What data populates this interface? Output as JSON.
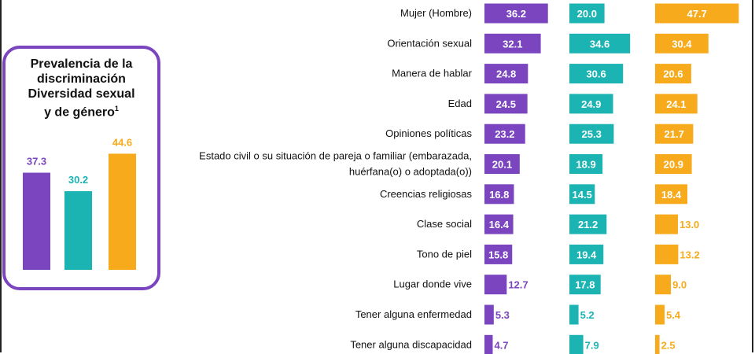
{
  "colors": {
    "purple": "#7a45bf",
    "teal": "#1cb3b3",
    "orange": "#f7ab1c"
  },
  "summary": {
    "title": "Prevalencia de la\ndiscriminación\nDiversidad sexual\ny de género",
    "footnote_marker": "1",
    "chart_data": {
      "type": "bar",
      "series": [
        {
          "value": 37.3,
          "label": "37.3",
          "color": "#7a45bf"
        },
        {
          "value": 30.2,
          "label": "30.2",
          "color": "#1cb3b3"
        },
        {
          "value": 44.6,
          "label": "44.6",
          "color": "#f7ab1c"
        }
      ]
    }
  },
  "chart_data": {
    "type": "bar",
    "orientation": "horizontal",
    "categories": [
      "Mujer (Hombre)",
      "Orientación sexual",
      "Manera de hablar",
      "Edad",
      "Opiniones políticas",
      "Estado civil o su situación de pareja o familiar (embarazada,\nhuérfana(o) o adoptada(o))",
      "Creencias religiosas",
      "Clase social",
      "Tono de piel",
      "Lugar donde vive",
      "Tener alguna enfermedad",
      "Tener alguna discapacidad"
    ],
    "series": [
      {
        "color": "#7a45bf",
        "values": [
          36.2,
          32.1,
          24.8,
          24.5,
          23.2,
          20.1,
          16.8,
          16.4,
          15.8,
          12.7,
          5.3,
          4.7
        ]
      },
      {
        "color": "#1cb3b3",
        "values": [
          20.0,
          34.6,
          30.6,
          24.9,
          25.3,
          18.9,
          14.5,
          21.2,
          19.4,
          17.8,
          5.2,
          7.9
        ]
      },
      {
        "color": "#f7ab1c",
        "values": [
          47.7,
          30.4,
          20.6,
          24.1,
          21.7,
          20.9,
          18.4,
          13.0,
          13.2,
          9.0,
          5.4,
          2.5
        ]
      }
    ]
  }
}
